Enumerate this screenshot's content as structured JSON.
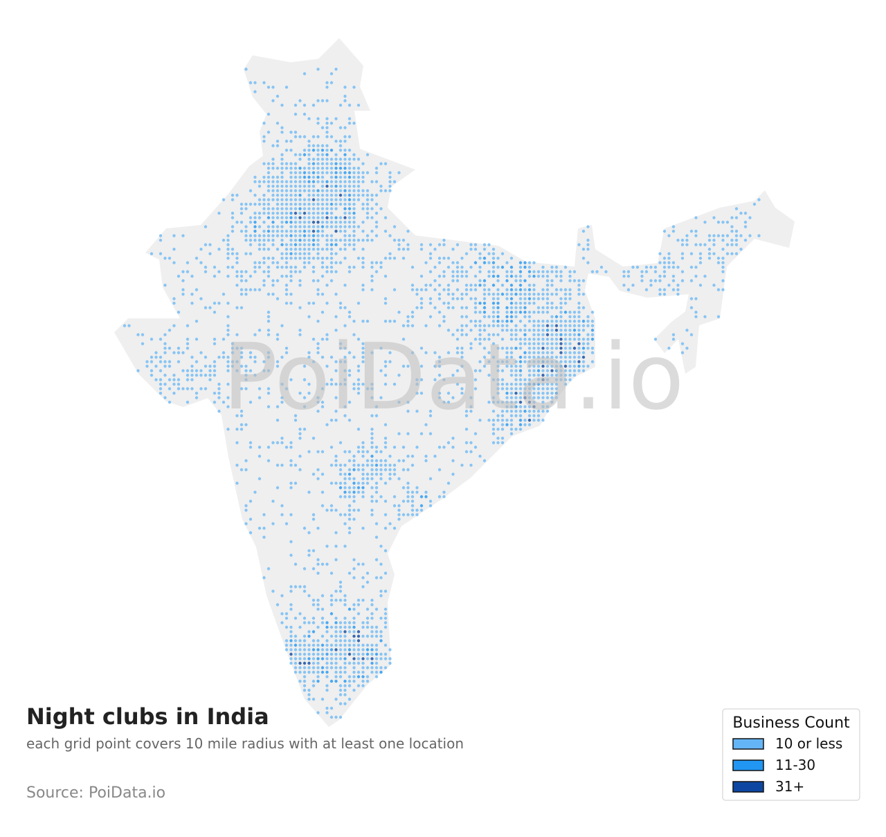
{
  "title": "Night clubs in India",
  "subtitle": "each grid point covers 10 mile radius with at least one location",
  "source": "Source: PoiData.io",
  "watermark": "PoiData.io",
  "legend": {
    "title": "Business Count",
    "items": [
      {
        "label": "10 or less",
        "color": "#64b5f6"
      },
      {
        "label": "11-30",
        "color": "#2196f3"
      },
      {
        "label": "31+",
        "color": "#0d47a1"
      }
    ]
  }
}
